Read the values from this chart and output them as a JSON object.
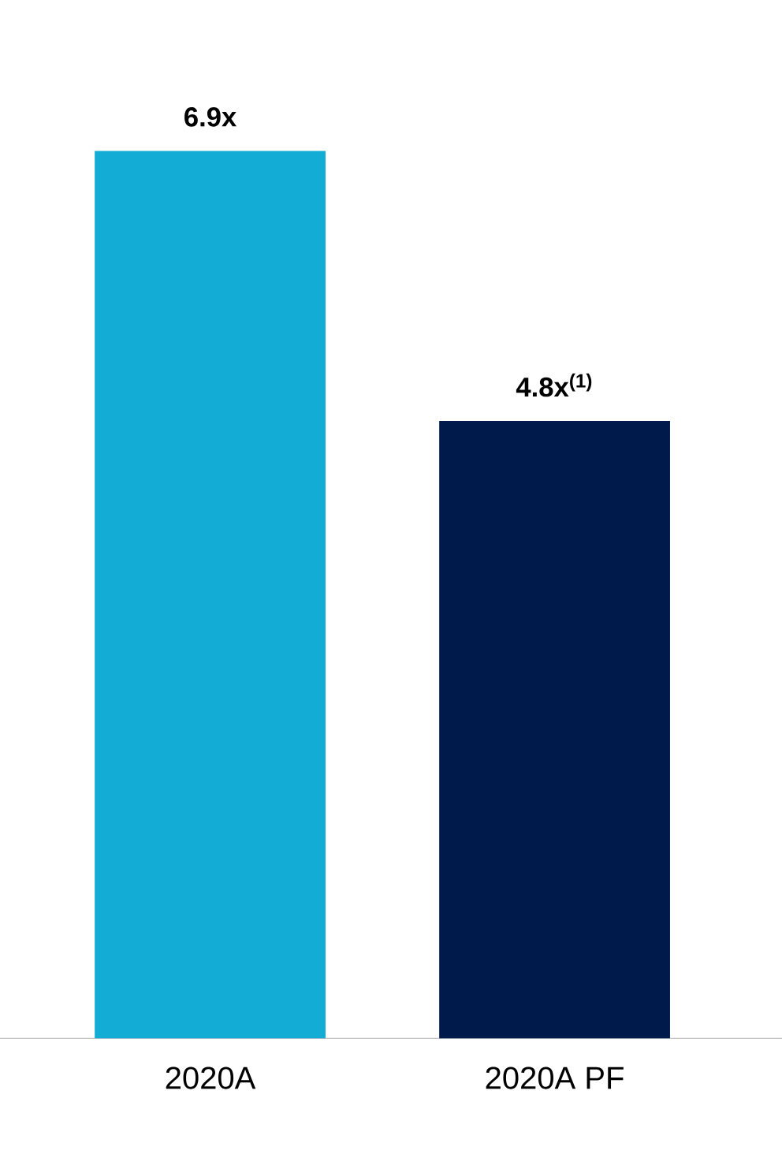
{
  "chart_data": {
    "type": "bar",
    "categories": [
      "2020A",
      "2020A PF"
    ],
    "values": [
      6.9,
      4.8
    ],
    "colors": [
      "#12acd4",
      "#001a4b"
    ],
    "value_labels": [
      "6.9x",
      "4.8x$^{(1)}$"
    ]
  }
}
